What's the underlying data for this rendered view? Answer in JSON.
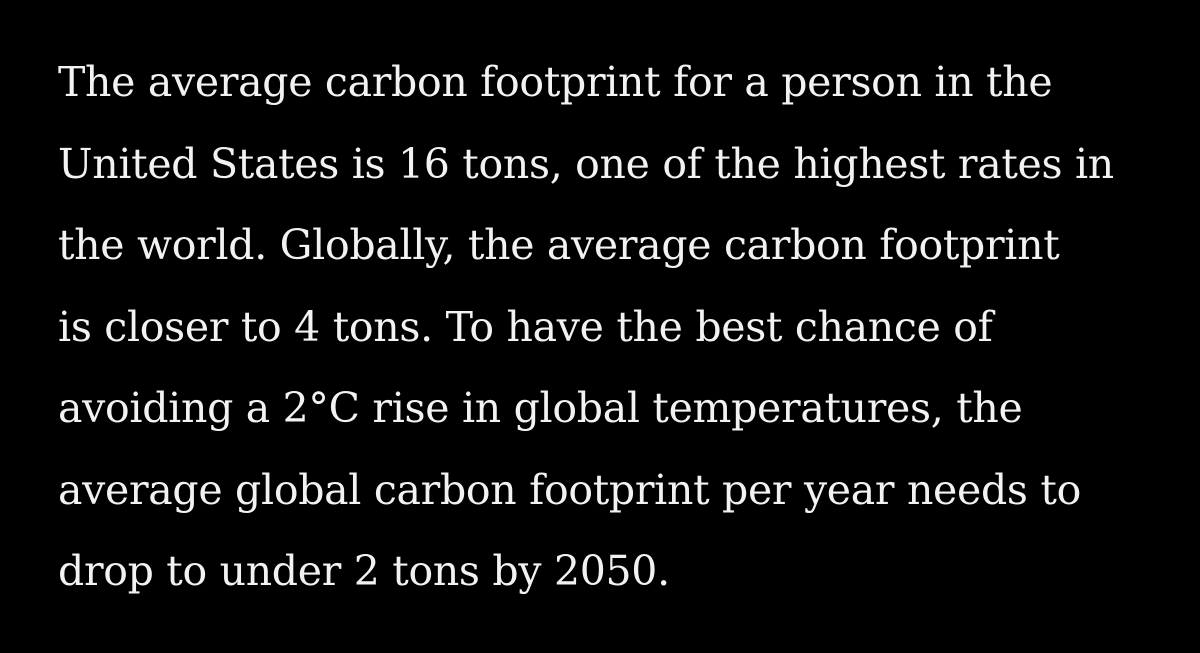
{
  "paragraph": {
    "lines": [
      "The average carbon footprint for a person in the",
      "United States is 16 tons, one of the highest rates in",
      "the world. Globally, the average carbon footprint",
      "is closer to 4 tons. To have the best chance of",
      "avoiding a 2°C rise in global temperatures, the",
      "average global carbon footprint per year needs to",
      "drop to under 2 tons by 2050."
    ]
  },
  "colors": {
    "background": "#000000",
    "text": "#f2f2f2"
  }
}
